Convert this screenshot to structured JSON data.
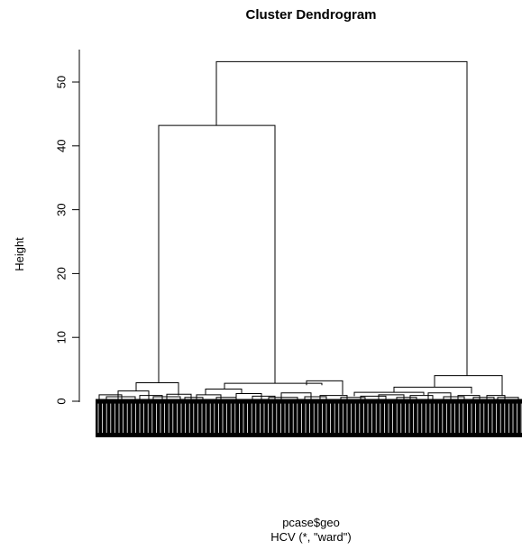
{
  "chart_data": {
    "type": "dendrogram",
    "title": "Cluster Dendrogram",
    "xlabel": "pcase$geo",
    "sublabel": "HCV (*, \"ward\")",
    "ylabel": "Height",
    "ylim": [
      0,
      54
    ],
    "yticks": [
      0,
      10,
      20,
      30,
      40,
      50
    ],
    "merges": [
      {
        "id": "root",
        "height": 53.2
      },
      {
        "id": "left-cluster",
        "height": 43.2
      },
      {
        "id": "right-cluster",
        "height": 4.0
      },
      {
        "id": "left-a",
        "height": 2.9
      },
      {
        "id": "left-b",
        "height": 2.8
      },
      {
        "id": "left-b2",
        "height": 3.2
      },
      {
        "id": "right-a",
        "height": 2.2
      },
      {
        "id": "right-a2",
        "height": 1.4
      }
    ],
    "leaves_note": "individual sample leaves"
  }
}
